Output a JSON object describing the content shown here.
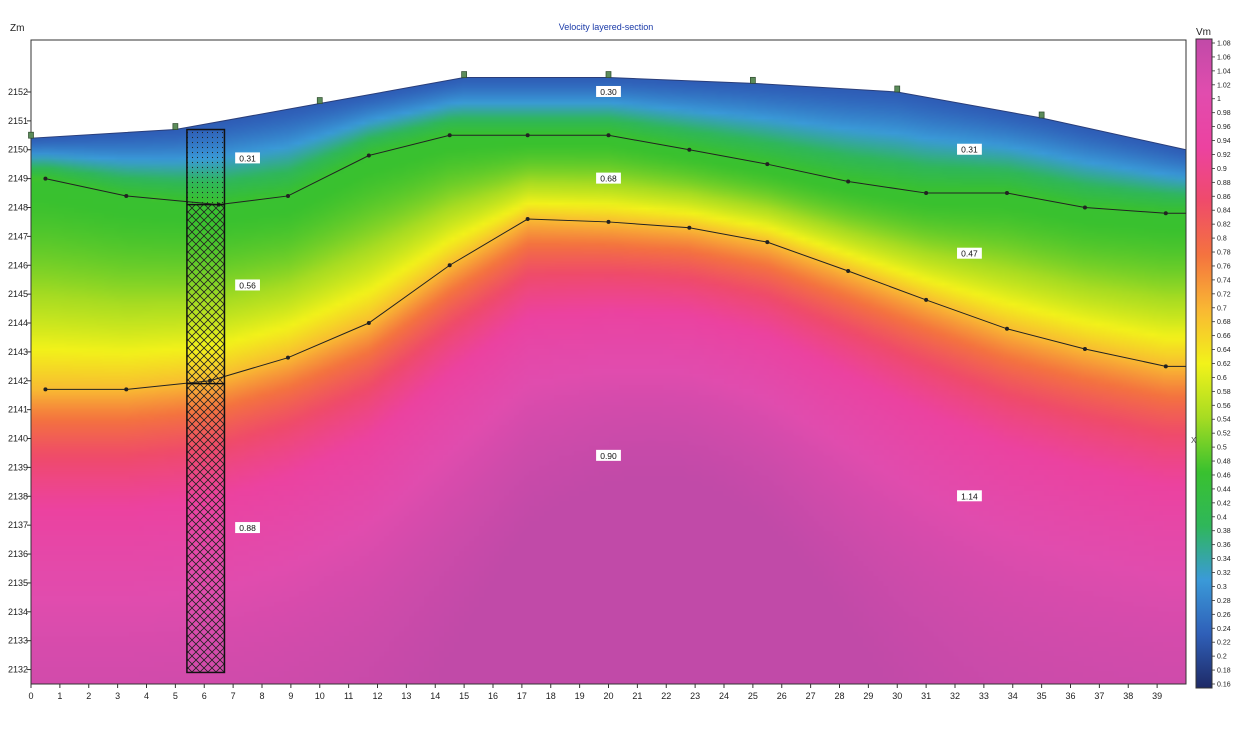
{
  "chart_data": {
    "type": "heatmap",
    "title": "Velocity layered-section",
    "ylabel": "Zm",
    "xlabel": "X",
    "colorbar_label": "Vm",
    "xlim": [
      0,
      40
    ],
    "ylim": [
      2131.5,
      2153.8
    ],
    "x_ticks": [
      0,
      1,
      2,
      3,
      4,
      5,
      6,
      7,
      8,
      9,
      10,
      11,
      12,
      13,
      14,
      15,
      16,
      17,
      18,
      19,
      20,
      21,
      22,
      23,
      24,
      25,
      26,
      27,
      28,
      29,
      30,
      31,
      32,
      33,
      34,
      35,
      36,
      37,
      38,
      39
    ],
    "y_ticks": [
      2132,
      2133,
      2134,
      2135,
      2136,
      2137,
      2138,
      2139,
      2140,
      2141,
      2142,
      2143,
      2144,
      2145,
      2146,
      2147,
      2148,
      2149,
      2150,
      2151,
      2152
    ],
    "colorbar_ticks": [
      "0.16",
      "0.18",
      "0.2",
      "0.22",
      "0.24",
      "0.26",
      "0.28",
      "0.3",
      "0.32",
      "0.34",
      "0.36",
      "0.38",
      "0.4",
      "0.42",
      "0.44",
      "0.46",
      "0.48",
      "0.5",
      "0.52",
      "0.54",
      "0.56",
      "0.58",
      "0.6",
      "0.62",
      "0.64",
      "0.66",
      "0.68",
      "0.7",
      "0.72",
      "0.74",
      "0.76",
      "0.78",
      "0.8",
      "0.82",
      "0.84",
      "0.86",
      "0.88",
      "0.9",
      "0.92",
      "0.94",
      "0.96",
      "0.98",
      "1",
      "1.02",
      "1.04",
      "1.06",
      "1.08"
    ],
    "colorbar_range": [
      0.16,
      1.08
    ],
    "colorscale": [
      "#1e2a66",
      "#2f5fb8",
      "#3a9ad8",
      "#2fb75a",
      "#39c12f",
      "#a7dc22",
      "#f2f21a",
      "#f9b833",
      "#f4733f",
      "#ef4b6a",
      "#ec42a0",
      "#e14cae",
      "#c14aa8"
    ],
    "surface": [
      [
        0,
        2150.4
      ],
      [
        5,
        2150.7
      ],
      [
        10,
        2151.6
      ],
      [
        15,
        2152.5
      ],
      [
        20,
        2152.5
      ],
      [
        25,
        2152.3
      ],
      [
        30,
        2152
      ],
      [
        35,
        2151.1
      ],
      [
        40,
        2150
      ]
    ],
    "surface_markers": [
      0,
      5,
      10,
      15,
      20,
      25,
      30,
      35
    ],
    "boundaries": [
      [
        [
          0.5,
          2149
        ],
        [
          3.3,
          2148.4
        ],
        [
          6.5,
          2148.1
        ],
        [
          8.9,
          2148.4
        ],
        [
          11.7,
          2149.8
        ],
        [
          14.5,
          2150.5
        ],
        [
          17.2,
          2150.5
        ],
        [
          20,
          2150.5
        ],
        [
          22.8,
          2150
        ],
        [
          25.5,
          2149.5
        ],
        [
          28.3,
          2148.9
        ],
        [
          31,
          2148.5
        ],
        [
          33.8,
          2148.5
        ],
        [
          36.5,
          2148
        ],
        [
          39.3,
          2147.8
        ],
        [
          40,
          2147.8
        ]
      ],
      [
        [
          0.5,
          2141.7
        ],
        [
          3.3,
          2141.7
        ],
        [
          6.2,
          2142
        ],
        [
          8.9,
          2142.8
        ],
        [
          11.7,
          2144
        ],
        [
          14.5,
          2146
        ],
        [
          17.2,
          2147.6
        ],
        [
          20,
          2147.5
        ],
        [
          22.8,
          2147.3
        ],
        [
          25.5,
          2146.8
        ],
        [
          28.3,
          2145.8
        ],
        [
          31,
          2144.8
        ],
        [
          33.8,
          2143.8
        ],
        [
          36.5,
          2143.1
        ],
        [
          39.3,
          2142.5
        ],
        [
          40,
          2142.5
        ]
      ]
    ],
    "layer_labels": [
      {
        "text": "0.30",
        "x": 20,
        "y": 2152
      },
      {
        "text": "0.31",
        "x": 7.5,
        "y": 2149.7
      },
      {
        "text": "0.31",
        "x": 32.5,
        "y": 2150
      },
      {
        "text": "0.68",
        "x": 20,
        "y": 2149
      },
      {
        "text": "0.47",
        "x": 32.5,
        "y": 2146.4
      },
      {
        "text": "0.56",
        "x": 7.5,
        "y": 2145.3
      },
      {
        "text": "0.90",
        "x": 20,
        "y": 2139.4
      },
      {
        "text": "1.14",
        "x": 32.5,
        "y": 2138
      },
      {
        "text": "0.88",
        "x": 7.5,
        "y": 2136.9
      }
    ],
    "borehole": {
      "x_range": [
        5.4,
        6.7
      ],
      "top": 2150.7,
      "bottom": 2131.9,
      "layer_bounds": [
        2148.1,
        2141.9
      ]
    }
  }
}
